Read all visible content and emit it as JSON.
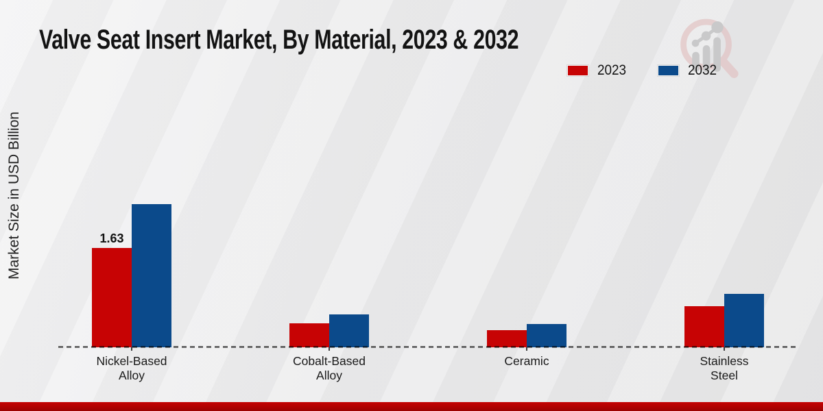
{
  "header": {
    "title": "Valve Seat Insert Market, By Material, 2023 & 2032"
  },
  "branding": {
    "logo_icon": "magnifier-growth-chart-logo"
  },
  "footer": {
    "accent_color": "#b00101"
  },
  "chart_data": {
    "type": "bar",
    "title": "Valve Seat Insert Market, By Material, 2023 & 2032",
    "xlabel": "",
    "ylabel": "Market Size in USD Billion",
    "categories": [
      "Nickel-Based Alloy",
      "Cobalt-Based Alloy",
      "Ceramic",
      "Stainless Steel"
    ],
    "category_label_lines": [
      [
        "Nickel-Based",
        "Alloy"
      ],
      [
        "Cobalt-Based",
        "Alloy"
      ],
      [
        "Ceramic"
      ],
      [
        "Stainless",
        "Steel"
      ]
    ],
    "series": [
      {
        "name": "2023",
        "color": "#c70304",
        "values": [
          1.63,
          0.39,
          0.28,
          0.67
        ]
      },
      {
        "name": "2032",
        "color": "#0b4a8b",
        "values": [
          2.35,
          0.54,
          0.38,
          0.88
        ]
      }
    ],
    "data_labels": [
      {
        "series_index": 0,
        "category_index": 0,
        "text": "1.63"
      }
    ],
    "ylim": [
      0,
      2.5
    ],
    "grid": false,
    "baseline": "dashed",
    "legend_position": "top-right"
  }
}
